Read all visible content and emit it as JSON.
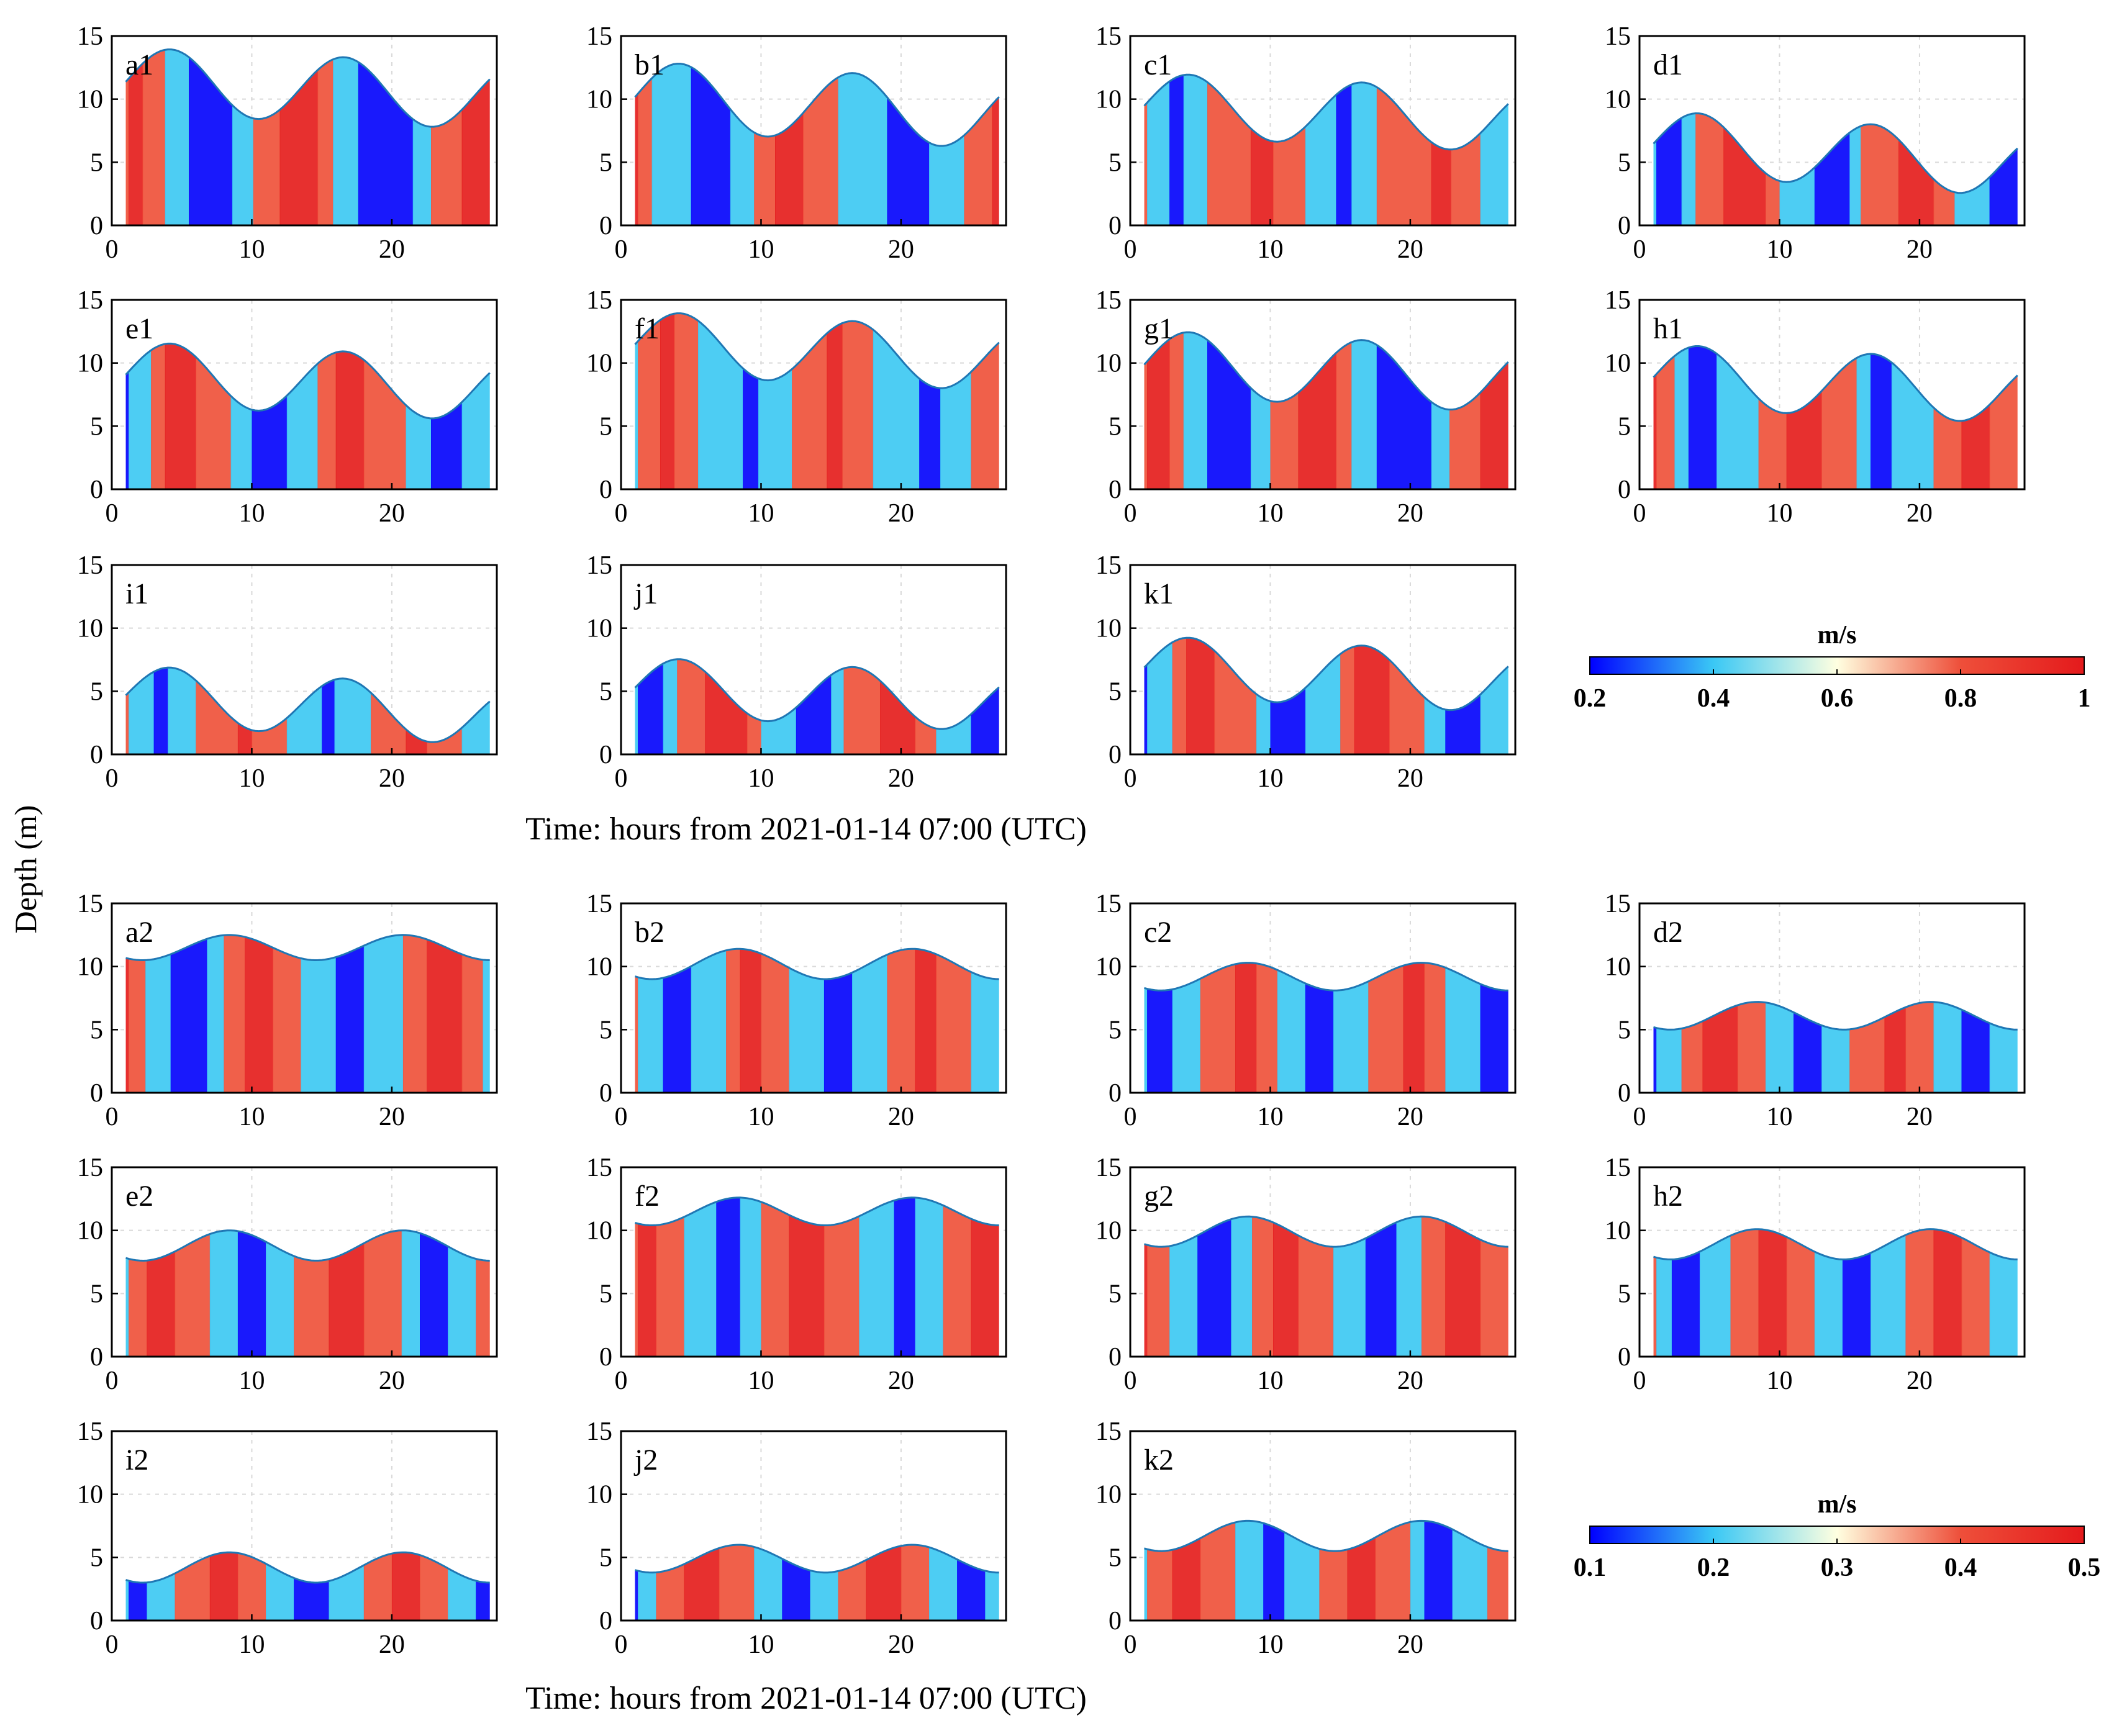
{
  "figure": {
    "y_label": "Depth (m)",
    "x_label_top": "Time: hours from 2021-01-14 07:00 (UTC)",
    "x_label_bottom": "Time: hours from 2021-01-14 07:00 (UTC)"
  },
  "chart_data": [
    {
      "type": "heatmap",
      "group": "1",
      "panels": [
        {
          "label": "a1",
          "surface": {
            "mean": 11.5,
            "amp": 2.6,
            "phase": 4.2,
            "trend": -0.05
          },
          "stripes": [
            1.2,
            2.2,
            3.8,
            5.5,
            8.6,
            10.1,
            12.0,
            14.7,
            15.8,
            17.6,
            21.5,
            22.8,
            25.0
          ]
        },
        {
          "label": "b1",
          "surface": {
            "mean": 10.3,
            "amp": 2.7,
            "phase": 4.2,
            "trend": -0.06
          },
          "stripes": [
            1.2,
            2.2,
            5.0,
            7.8,
            9.5,
            11.0,
            13.0,
            15.5,
            19.0,
            22.0,
            24.5,
            26.5
          ]
        },
        {
          "label": "c1",
          "surface": {
            "mean": 9.6,
            "amp": 2.5,
            "phase": 4.2,
            "trend": -0.05
          },
          "stripes": [
            1.2,
            2.8,
            3.8,
            5.5,
            8.6,
            10.2,
            12.5,
            14.7,
            15.8,
            17.6,
            21.5,
            22.9,
            25.0
          ]
        },
        {
          "label": "d1",
          "surface": {
            "mean": 6.6,
            "amp": 2.5,
            "phase": 4.2,
            "trend": -0.07
          },
          "stripes": [
            1.2,
            3.0,
            4.0,
            6.0,
            9.0,
            10.0,
            12.5,
            15.0,
            15.8,
            18.5,
            21.0,
            22.5,
            25.0
          ]
        },
        {
          "label": "e1",
          "surface": {
            "mean": 9.2,
            "amp": 2.5,
            "phase": 4.2,
            "trend": -0.05
          },
          "stripes": [
            1.2,
            2.8,
            3.8,
            6.0,
            8.5,
            10.0,
            12.5,
            14.7,
            16.0,
            18.0,
            21.0,
            22.8,
            25.0
          ]
        },
        {
          "label": "f1",
          "surface": {
            "mean": 11.6,
            "amp": 2.5,
            "phase": 4.2,
            "trend": -0.05
          },
          "stripes": [
            1.2,
            2.8,
            3.8,
            5.5,
            8.7,
            9.8,
            12.2,
            14.7,
            15.8,
            18.0,
            21.3,
            22.8,
            25.0
          ]
        },
        {
          "label": "g1",
          "surface": {
            "mean": 10.0,
            "amp": 2.6,
            "phase": 4.2,
            "trend": -0.05
          },
          "stripes": [
            1.2,
            2.8,
            3.8,
            5.5,
            8.6,
            10.0,
            12.0,
            14.7,
            15.8,
            17.6,
            21.5,
            22.8,
            25.0
          ]
        },
        {
          "label": "h1",
          "surface": {
            "mean": 9.0,
            "amp": 2.5,
            "phase": 4.2,
            "trend": -0.05
          },
          "stripes": [
            1.2,
            2.5,
            3.5,
            5.5,
            8.5,
            10.5,
            13.0,
            15.5,
            16.5,
            18.0,
            21.0,
            23.0,
            25.0
          ]
        },
        {
          "label": "i1",
          "surface": {
            "mean": 4.8,
            "amp": 2.3,
            "phase": 4.2,
            "trend": -0.07
          },
          "stripes": [
            1.2,
            3.0,
            4.0,
            6.0,
            9.0,
            10.0,
            12.5,
            15.0,
            15.9,
            18.5,
            21.0,
            22.5,
            25.0
          ]
        },
        {
          "label": "j1",
          "surface": {
            "mean": 5.4,
            "amp": 2.3,
            "phase": 4.2,
            "trend": -0.05
          },
          "stripes": [
            1.2,
            3.0,
            4.0,
            6.0,
            9.0,
            10.0,
            12.5,
            15.0,
            15.9,
            18.5,
            21.0,
            22.5,
            25.0
          ]
        },
        {
          "label": "k1",
          "surface": {
            "mean": 7.0,
            "amp": 2.4,
            "phase": 4.2,
            "trend": -0.05
          },
          "stripes": [
            1.2,
            3.0,
            4.0,
            6.0,
            9.0,
            10.0,
            12.5,
            15.0,
            16.0,
            18.5,
            21.0,
            22.5,
            25.0
          ]
        }
      ],
      "x_ticks": [
        0,
        10,
        20
      ],
      "y_ticks": [
        0,
        5,
        10,
        15
      ],
      "xlim": [
        0,
        27.5
      ],
      "ylim": [
        0,
        15
      ],
      "colorbar": {
        "title": "m/s",
        "ticks": [
          "0.2",
          "0.4",
          "0.6",
          "0.8",
          "1"
        ],
        "min": 0.2,
        "max": 1.0
      },
      "colormap": [
        "#0000FF",
        "#3AC8F5",
        "#FFFFE0",
        "#EE4F3A",
        "#E41A1C"
      ]
    },
    {
      "type": "heatmap",
      "group": "2",
      "panels": [
        {
          "label": "a2",
          "surface": {
            "mean": 11.5,
            "amp": 1.0,
            "phase": 8.4,
            "trend": 0.0
          },
          "stripes": [
            1.2,
            2.4,
            4.2,
            6.8,
            8.0,
            9.5,
            11.5,
            13.5,
            16.0,
            18.0,
            20.8,
            22.5,
            25.0,
            26.5
          ]
        },
        {
          "label": "b2",
          "surface": {
            "mean": 10.2,
            "amp": 1.2,
            "phase": 8.4,
            "trend": 0.0
          },
          "stripes": [
            1.2,
            3.0,
            5.0,
            7.5,
            8.5,
            10.0,
            12.0,
            14.5,
            16.5,
            19.0,
            21.0,
            22.5,
            25.0
          ]
        },
        {
          "label": "c2",
          "surface": {
            "mean": 9.2,
            "amp": 1.1,
            "phase": 8.4,
            "trend": 0.0
          },
          "stripes": [
            1.2,
            3.0,
            5.0,
            7.5,
            9.0,
            10.5,
            12.5,
            14.5,
            17.0,
            19.5,
            21.0,
            22.5,
            25.0
          ]
        },
        {
          "label": "d2",
          "surface": {
            "mean": 6.1,
            "amp": 1.1,
            "phase": 8.4,
            "trend": 0.0
          },
          "stripes": [
            1.2,
            3.0,
            4.5,
            7.0,
            9.0,
            11.0,
            13.0,
            15.0,
            17.5,
            19.0,
            21.0,
            23.0,
            25.0
          ]
        },
        {
          "label": "e2",
          "surface": {
            "mean": 8.8,
            "amp": 1.2,
            "phase": 8.4,
            "trend": 0.0
          },
          "stripes": [
            1.2,
            2.5,
            4.5,
            7.0,
            9.0,
            11.0,
            13.0,
            15.5,
            18.0,
            20.7,
            22.0,
            24.0,
            26.0
          ]
        },
        {
          "label": "f2",
          "surface": {
            "mean": 11.5,
            "amp": 1.1,
            "phase": 8.4,
            "trend": 0.0
          },
          "stripes": [
            1.2,
            2.5,
            4.5,
            6.8,
            8.5,
            10.0,
            12.0,
            14.5,
            17.0,
            19.5,
            21.0,
            23.0,
            25.0
          ]
        },
        {
          "label": "g2",
          "surface": {
            "mean": 9.9,
            "amp": 1.2,
            "phase": 8.4,
            "trend": 0.0
          },
          "stripes": [
            1.2,
            2.8,
            4.8,
            7.2,
            8.7,
            10.2,
            12.0,
            14.5,
            16.8,
            19.0,
            20.8,
            22.5,
            25.0
          ]
        },
        {
          "label": "h2",
          "surface": {
            "mean": 8.9,
            "amp": 1.2,
            "phase": 8.4,
            "trend": 0.0
          },
          "stripes": [
            1.2,
            2.3,
            4.3,
            6.5,
            8.5,
            10.5,
            12.5,
            14.5,
            16.5,
            19.0,
            21.0,
            23.0,
            25.0
          ]
        },
        {
          "label": "i2",
          "surface": {
            "mean": 4.2,
            "amp": 1.2,
            "phase": 8.4,
            "trend": 0.0
          },
          "stripes": [
            1.2,
            2.5,
            4.5,
            7.0,
            9.0,
            11.0,
            13.0,
            15.5,
            18.0,
            20.0,
            22.0,
            24.0,
            26.0
          ]
        },
        {
          "label": "j2",
          "surface": {
            "mean": 4.9,
            "amp": 1.1,
            "phase": 8.4,
            "trend": 0.0
          },
          "stripes": [
            1.2,
            2.5,
            4.5,
            7.0,
            9.5,
            11.5,
            13.5,
            15.5,
            17.5,
            20.0,
            22.0,
            24.0,
            26.0
          ]
        },
        {
          "label": "k2",
          "surface": {
            "mean": 6.7,
            "amp": 1.2,
            "phase": 8.4,
            "trend": 0.0
          },
          "stripes": [
            1.2,
            3.0,
            5.0,
            7.5,
            9.5,
            11.0,
            13.5,
            15.5,
            17.5,
            20.0,
            21.0,
            23.0,
            25.5
          ]
        }
      ],
      "x_ticks": [
        0,
        10,
        20
      ],
      "y_ticks": [
        0,
        5,
        10,
        15
      ],
      "xlim": [
        0,
        27.5
      ],
      "ylim": [
        0,
        15
      ],
      "colorbar": {
        "title": "m/s",
        "ticks": [
          "0.1",
          "0.2",
          "0.3",
          "0.4",
          "0.5"
        ],
        "min": 0.1,
        "max": 0.5
      },
      "colormap": [
        "#0000FF",
        "#3AC8F5",
        "#FFFFE0",
        "#EE4F3A",
        "#E41A1C"
      ]
    }
  ]
}
